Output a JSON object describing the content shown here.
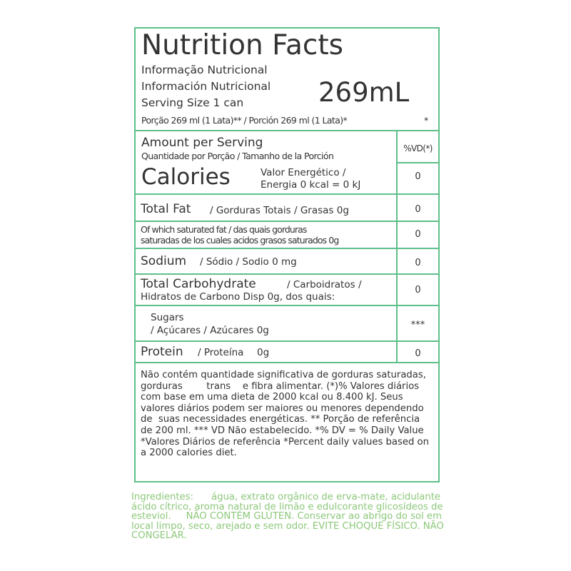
{
  "header": {
    "title": "Nutrition Facts",
    "line_pt": "Informação Nutricional",
    "line_es": "Información Nutricional",
    "serving_size": "Serving Size 1 can",
    "volume": "269mL",
    "portion": "Porção 269 ml (1 Lata)** / Porción 269 ml (1 Lata)*",
    "asterisk": "*"
  },
  "amount": {
    "title": "Amount per Serving",
    "subtitle": "Quantidade por Porção / Tamanho de la Porción",
    "vd_header": "%VD(*)"
  },
  "calories": {
    "label": "Calories",
    "desc1": "Valor Energético /",
    "desc2": "Energia 0 kcal = 0 kJ",
    "value": "0"
  },
  "rows": [
    {
      "label": "Total Fat",
      "desc": "/ Gorduras Totais / Grasas 0g",
      "value": "0"
    },
    {
      "label": "Of which saturated fat / das quais gorduras",
      "desc": "saturadas de los cuales acidos grasos saturados 0g",
      "value": "0"
    },
    {
      "label": "Sodium",
      "desc": "/ Sódio / Sodio 0 mg",
      "value": "0"
    },
    {
      "label": "Total Carbohydrate",
      "desc": "/ Carboidratos /",
      "desc2": "Hidratos  de Carbono Disp 0g, dos quais:",
      "value": "0"
    },
    {
      "label": "Sugars",
      "desc": "/ Açúcares /  Azúcares 0g",
      "value": "***"
    },
    {
      "label": "Protein",
      "desc": "/ Proteína",
      "amount": "0g",
      "value": "0"
    }
  ],
  "footnote": "Não contém quantidade significativa de gorduras saturadas, gorduras        trans    e fibra alimentar. (*)% Valores diários com base em uma dieta de 2000 kcal ou 8.400 kJ. Seus valores diários podem ser maiores ou menores dependendo de  suas necessidades energéticas. ** Porção de referência de 200 ml. *** VD Não estabelecido. *% DV = % Daily Value *Valores Diários de referência *Percent daily values based on a 2000 calories diet.",
  "ingredients": "Ingredientes:      água, extrato orgânico de erva-mate, acidulante ácido cítrico, aroma natural de limão e edulcorante glicosídeos de esteviol.     NÃO CONTÉM GLÚTEN. Conservar ao abrigo do sol em local limpo, seco, arejado e sem odor. EVITE CHOQUE FÍSICO. NÃO CONGELAR.",
  "colors": {
    "border": "#5dbf8a",
    "ingredients": "#8cc87a",
    "text": "#333333"
  }
}
